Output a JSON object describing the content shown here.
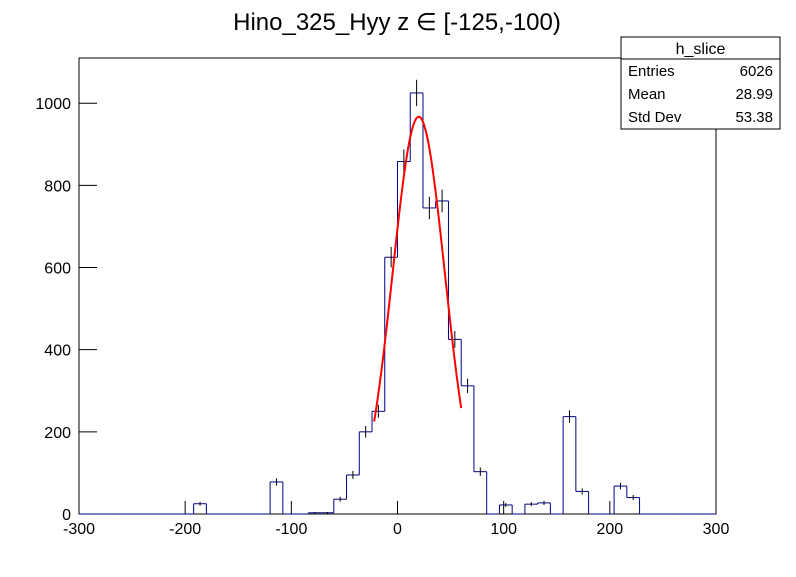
{
  "chart_data": {
    "type": "histogram",
    "title": "Hino_325_Hyy z  ∈ [-125,-100)",
    "bins": [
      -300,
      -288,
      -276,
      -264,
      -252,
      -240,
      -228,
      -216,
      -204,
      -192,
      -180,
      -168,
      -156,
      -144,
      -132,
      -120,
      -108,
      -96,
      -84,
      -72,
      -60,
      -48,
      -36,
      -24,
      -12,
      0,
      12,
      24,
      36,
      48,
      60,
      72,
      84,
      96,
      108,
      120,
      132,
      144,
      156,
      168,
      180,
      192,
      204,
      216,
      228,
      240,
      252,
      264,
      276,
      288,
      300
    ],
    "values": [
      0,
      0,
      0,
      0,
      0,
      0,
      0,
      0,
      0,
      25,
      0,
      0,
      0,
      0,
      0,
      78,
      0,
      0,
      3,
      3,
      36,
      95,
      200,
      250,
      625,
      858,
      1025,
      745,
      762,
      425,
      312,
      103,
      0,
      22,
      0,
      24,
      27,
      0,
      237,
      55,
      0,
      0,
      68,
      40,
      0,
      0,
      0,
      0,
      0,
      0
    ],
    "errors": [
      0,
      0,
      0,
      0,
      0,
      0,
      0,
      0,
      0,
      5,
      0,
      0,
      0,
      0,
      0,
      8.8,
      0,
      0,
      1.7,
      1.7,
      6,
      9.7,
      14.1,
      15.8,
      25,
      29.3,
      32,
      27.3,
      27.6,
      20.6,
      17.7,
      10.1,
      0,
      4.7,
      0,
      4.9,
      5.2,
      0,
      15.4,
      7.4,
      0,
      0,
      8.2,
      6.3,
      0,
      0,
      0,
      0,
      0,
      0
    ],
    "color": "#000080",
    "fit": {
      "color": "#ff0000",
      "amplitude": 967,
      "mean": 20,
      "sigma": 24.6,
      "range": [
        -22,
        60
      ]
    },
    "xlim": [
      -300,
      300
    ],
    "xticks": [
      -300,
      -200,
      -100,
      0,
      100,
      200,
      300
    ],
    "ylim": [
      0,
      1110
    ],
    "yticks": [
      0,
      200,
      400,
      600,
      800,
      1000
    ],
    "stats": {
      "title": "h_slice",
      "rows": [
        [
          "Entries",
          6026
        ],
        [
          "Mean",
          28.99
        ],
        [
          "Std Dev",
          53.38
        ]
      ]
    }
  }
}
